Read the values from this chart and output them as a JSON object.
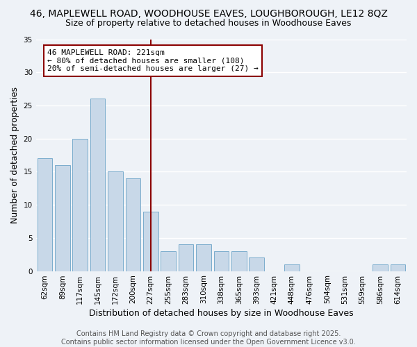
{
  "title": "46, MAPLEWELL ROAD, WOODHOUSE EAVES, LOUGHBOROUGH, LE12 8QZ",
  "subtitle": "Size of property relative to detached houses in Woodhouse Eaves",
  "xlabel": "Distribution of detached houses by size in Woodhouse Eaves",
  "ylabel": "Number of detached properties",
  "bin_labels": [
    "62sqm",
    "89sqm",
    "117sqm",
    "145sqm",
    "172sqm",
    "200sqm",
    "227sqm",
    "255sqm",
    "283sqm",
    "310sqm",
    "338sqm",
    "365sqm",
    "393sqm",
    "421sqm",
    "448sqm",
    "476sqm",
    "504sqm",
    "531sqm",
    "559sqm",
    "586sqm",
    "614sqm"
  ],
  "counts": [
    17,
    16,
    20,
    26,
    15,
    14,
    9,
    3,
    4,
    4,
    3,
    3,
    2,
    0,
    1,
    0,
    0,
    0,
    0,
    1,
    1
  ],
  "bar_color": "#c8d8e8",
  "bar_edgecolor": "#7aaccc",
  "vline_bin": 6,
  "vline_color": "#8b0000",
  "annotation_text": "46 MAPLEWELL ROAD: 221sqm\n← 80% of detached houses are smaller (108)\n20% of semi-detached houses are larger (27) →",
  "annotation_box_color": "#ffffff",
  "annotation_box_edgecolor": "#8b0000",
  "ylim": [
    0,
    35
  ],
  "yticks": [
    0,
    5,
    10,
    15,
    20,
    25,
    30,
    35
  ],
  "footer": "Contains HM Land Registry data © Crown copyright and database right 2025.\nContains public sector information licensed under the Open Government Licence v3.0.",
  "background_color": "#eef2f7",
  "grid_color": "#ffffff",
  "title_fontsize": 10,
  "subtitle_fontsize": 9,
  "axis_label_fontsize": 9,
  "tick_fontsize": 7.5,
  "annotation_fontsize": 8,
  "footer_fontsize": 7
}
